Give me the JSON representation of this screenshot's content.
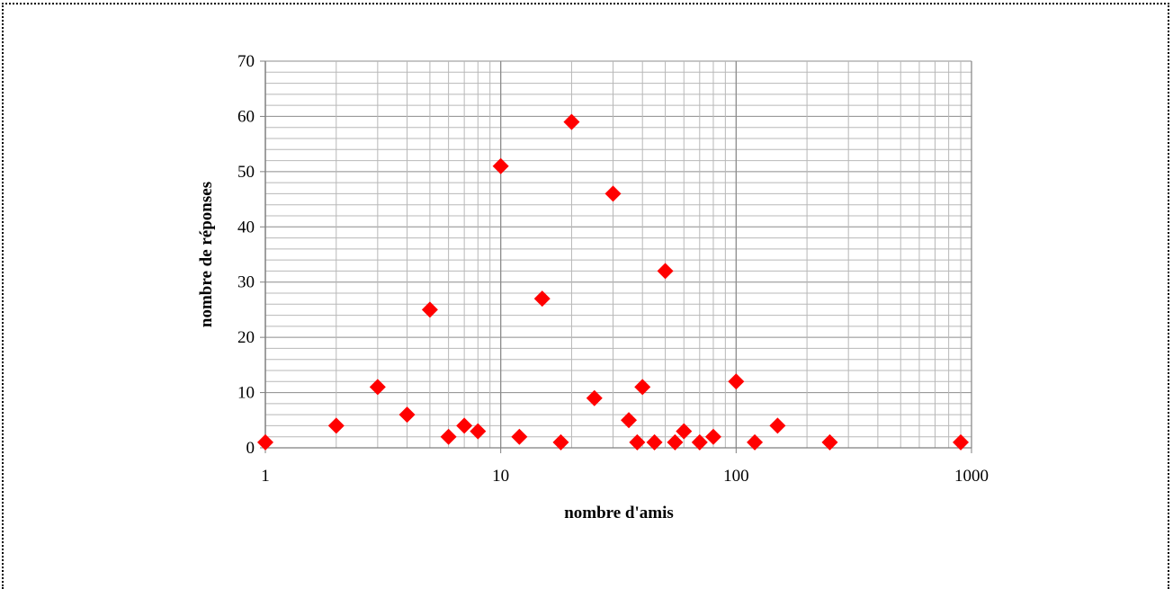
{
  "chart_data": {
    "type": "scatter",
    "title": "",
    "xlabel": "nombre d'amis",
    "ylabel": "nombre de réponses",
    "x_scale": "log",
    "xlim": [
      1,
      1000
    ],
    "ylim": [
      0,
      70
    ],
    "x_ticks": [
      "1",
      "10",
      "100",
      "1000"
    ],
    "y_ticks": [
      "0",
      "10",
      "20",
      "30",
      "40",
      "50",
      "60",
      "70"
    ],
    "grid": true,
    "legend": "none",
    "marker": "diamond",
    "marker_color": "#ff0000",
    "series": [
      {
        "points": [
          {
            "x": 1,
            "y": 1
          },
          {
            "x": 2,
            "y": 4
          },
          {
            "x": 3,
            "y": 11
          },
          {
            "x": 4,
            "y": 6
          },
          {
            "x": 5,
            "y": 25
          },
          {
            "x": 6,
            "y": 2
          },
          {
            "x": 7,
            "y": 4
          },
          {
            "x": 8,
            "y": 3
          },
          {
            "x": 10,
            "y": 51
          },
          {
            "x": 12,
            "y": 2
          },
          {
            "x": 15,
            "y": 27
          },
          {
            "x": 18,
            "y": 1
          },
          {
            "x": 20,
            "y": 59
          },
          {
            "x": 25,
            "y": 9
          },
          {
            "x": 30,
            "y": 46
          },
          {
            "x": 35,
            "y": 5
          },
          {
            "x": 38,
            "y": 1
          },
          {
            "x": 40,
            "y": 11
          },
          {
            "x": 45,
            "y": 1
          },
          {
            "x": 50,
            "y": 32
          },
          {
            "x": 55,
            "y": 1
          },
          {
            "x": 60,
            "y": 3
          },
          {
            "x": 70,
            "y": 1
          },
          {
            "x": 80,
            "y": 2
          },
          {
            "x": 100,
            "y": 12
          },
          {
            "x": 120,
            "y": 1
          },
          {
            "x": 150,
            "y": 4
          },
          {
            "x": 250,
            "y": 1
          },
          {
            "x": 900,
            "y": 1
          }
        ]
      }
    ]
  }
}
